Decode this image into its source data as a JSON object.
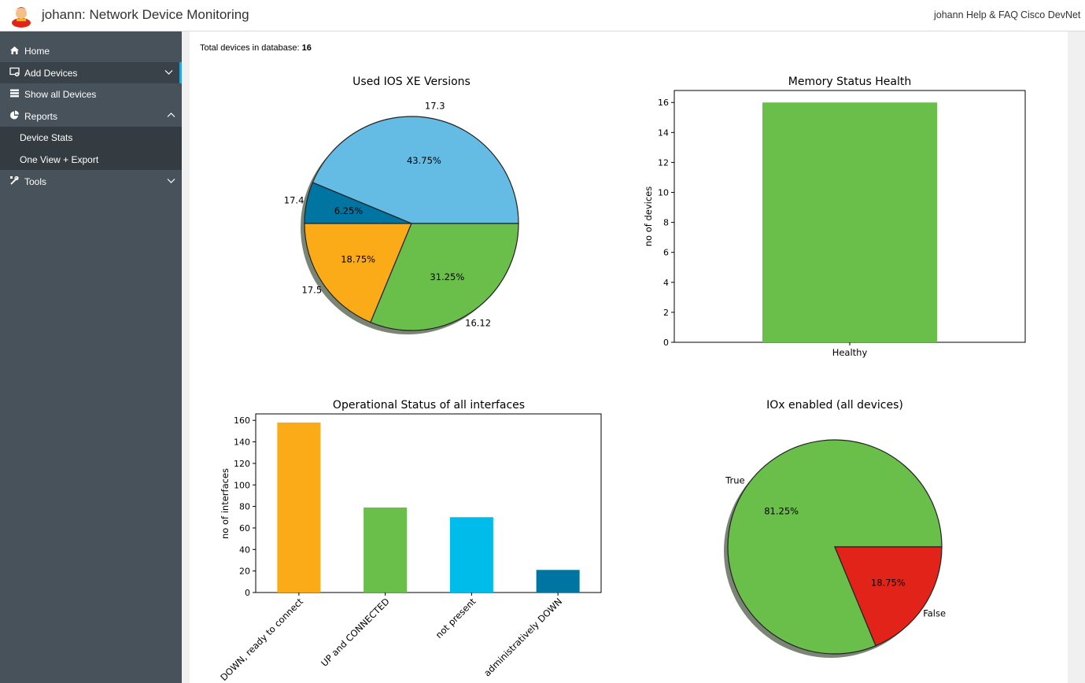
{
  "header": {
    "title": "johann: Network Device Monitoring",
    "links": [
      "johann Help & FAQ",
      "Cisco DevNet"
    ]
  },
  "sidebar": {
    "items": [
      {
        "label": "Home",
        "icon": "home-icon"
      },
      {
        "label": "Add Devices",
        "icon": "add-device-icon"
      },
      {
        "label": "Show all Devices",
        "icon": "list-icon"
      },
      {
        "label": "Reports",
        "icon": "pie-chart-icon"
      },
      {
        "label": "Tools",
        "icon": "tools-icon"
      }
    ],
    "reports_sub": [
      "Device Stats",
      "One View + Export"
    ]
  },
  "summary": {
    "label": "Total devices in database:",
    "count": "16"
  },
  "colors": {
    "lightblue": "#64bbe3",
    "green": "#6abf4b",
    "orange": "#fbab18",
    "darkblue": "#0075a2",
    "cyan": "#00bceb",
    "red": "#e2231a",
    "sidebar": "#48525b",
    "accent": "#2aa6dd"
  },
  "chart_data": [
    {
      "type": "pie",
      "title": "Used IOS XE Versions",
      "labels": [
        "17.3",
        "17.4",
        "17.5",
        "16.12"
      ],
      "values": [
        43.75,
        6.25,
        18.75,
        31.25
      ],
      "pct_labels": [
        "43.75%",
        "6.25%",
        "18.75%",
        "31.25%"
      ],
      "colors": [
        "#64bbe3",
        "#0075a2",
        "#fbab18",
        "#6abf4b"
      ],
      "shadow": true
    },
    {
      "type": "bar",
      "title": "Memory Status Health",
      "categories": [
        "Healthy"
      ],
      "values": [
        16
      ],
      "ylabel": "no of devices",
      "ylim": [
        0,
        16.8
      ],
      "yticks": [
        0,
        2,
        4,
        6,
        8,
        10,
        12,
        14,
        16
      ],
      "colors": [
        "#6abf4b"
      ]
    },
    {
      "type": "bar",
      "title": "Operational Status of all interfaces",
      "categories": [
        "DOWN, ready to connect",
        "UP and CONNECTED",
        "not present",
        "administratively DOWN"
      ],
      "values": [
        158,
        79,
        70,
        21
      ],
      "ylabel": "no of interfaces",
      "ylim": [
        0,
        166
      ],
      "yticks": [
        0,
        20,
        40,
        60,
        80,
        100,
        120,
        140,
        160
      ],
      "colors": [
        "#fbab18",
        "#6abf4b",
        "#00bceb",
        "#0075a2"
      ]
    },
    {
      "type": "pie",
      "title": "IOx enabled (all devices)",
      "labels": [
        "True",
        "False"
      ],
      "values": [
        81.25,
        18.75
      ],
      "pct_labels": [
        "81.25%",
        "18.75%"
      ],
      "colors": [
        "#6abf4b",
        "#e2231a"
      ],
      "shadow": true
    }
  ]
}
